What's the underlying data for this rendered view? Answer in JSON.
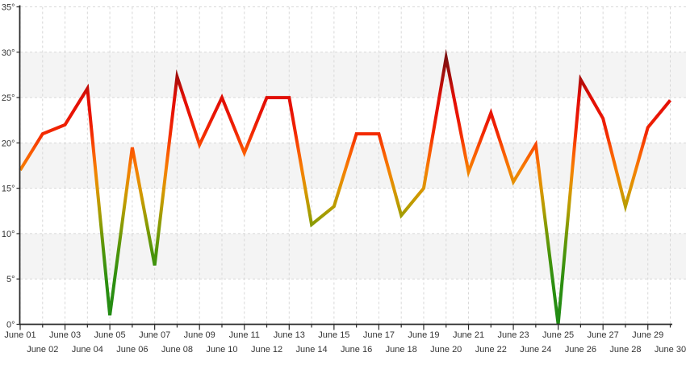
{
  "chart_data": {
    "type": "line",
    "series_name": "daily-temperature",
    "unit": "°",
    "x": [
      "June 01",
      "June 02",
      "June 03",
      "June 04",
      "June 05",
      "June 06",
      "June 07",
      "June 08",
      "June 09",
      "June 10",
      "June 11",
      "June 12",
      "June 13",
      "June 14",
      "June 15",
      "June 16",
      "June 17",
      "June 18",
      "June 19",
      "June 20",
      "June 21",
      "June 22",
      "June 23",
      "June 24",
      "June 25",
      "June 26",
      "June 27",
      "June 28",
      "June 29",
      "June 30"
    ],
    "values": [
      17,
      21,
      22,
      26,
      1,
      19.5,
      6.5,
      27.3,
      19.8,
      25,
      18.9,
      25,
      25,
      11,
      13,
      21,
      21,
      12,
      15,
      29.4,
      16.8,
      23.3,
      15.7,
      19.8,
      0,
      27,
      22.7,
      13,
      21.7,
      24.7
    ],
    "title": "",
    "xlabel": "",
    "ylabel": "",
    "ylim": [
      0,
      35
    ],
    "y_tick_step": 5,
    "y_tick_labels": [
      "0°",
      "5°",
      "10°",
      "15°",
      "20°",
      "25°",
      "30°",
      "35°"
    ],
    "grid": "dashed gridlines: vertical per day, horizontal per 5 degrees",
    "legend": "none",
    "line_color_rule": "stroke color mapped to value: green at 0°, olive ~11°, mustard ~13°, orange ~17°, red ~23°, dark red ~29°"
  },
  "style": {
    "band_fill": "#f4f4f4",
    "band_ranges": [
      [
        5,
        10
      ],
      [
        15,
        20
      ],
      [
        25,
        30
      ]
    ],
    "grid_color": "#d8d8d8",
    "axis_color": "#2b2b2b",
    "label_color": "#333333",
    "line_width": 4,
    "color_scale": [
      {
        "v": 0,
        "c": "#1f8a14"
      },
      {
        "v": 5,
        "c": "#2e8f10"
      },
      {
        "v": 8,
        "c": "#4c9409"
      },
      {
        "v": 11,
        "c": "#8a9b03"
      },
      {
        "v": 13,
        "c": "#b89c00"
      },
      {
        "v": 15,
        "c": "#dc9500"
      },
      {
        "v": 17,
        "c": "#f58000"
      },
      {
        "v": 19,
        "c": "#fb5a00"
      },
      {
        "v": 21,
        "c": "#f32a00"
      },
      {
        "v": 23,
        "c": "#e91505"
      },
      {
        "v": 25,
        "c": "#e20e04"
      },
      {
        "v": 27,
        "c": "#ae0d0a"
      },
      {
        "v": 29,
        "c": "#86100f"
      },
      {
        "v": 31,
        "c": "#6d1013"
      },
      {
        "v": 35,
        "c": "#5a0f14"
      }
    ]
  }
}
